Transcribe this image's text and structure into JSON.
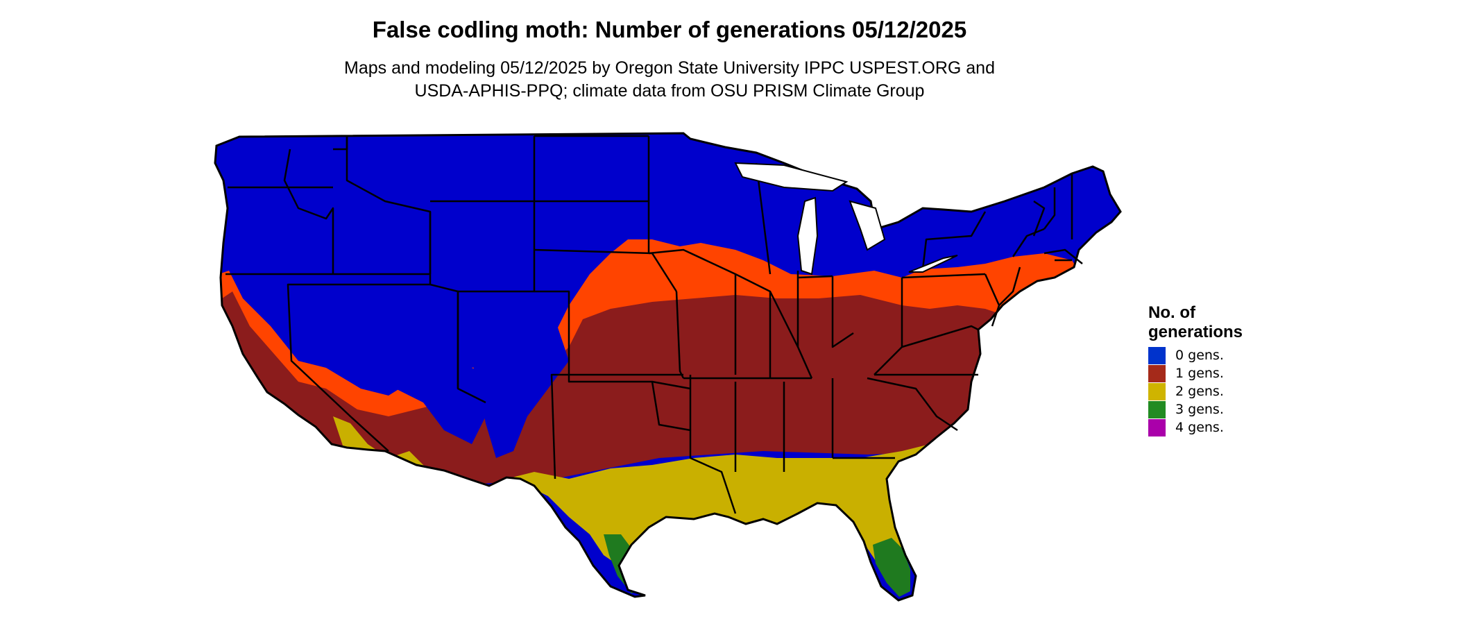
{
  "title": "False codling moth: Number of generations 05/12/2025",
  "subtitle_line1": "Maps and modeling 05/12/2025 by Oregon State University IPPC USPEST.ORG and",
  "subtitle_line2": "USDA-APHIS-PPQ; climate data from OSU PRISM Climate Group",
  "legend": {
    "title_line1": "No. of",
    "title_line2": "generations",
    "items": [
      {
        "label": "0 gens.",
        "color": "#0033cc"
      },
      {
        "label": "1 gens.",
        "color": "#a52a1a"
      },
      {
        "label": "2 gens.",
        "color": "#cfb400"
      },
      {
        "label": "3 gens.",
        "color": "#228b22"
      },
      {
        "label": "4 gens.",
        "color": "#aa00aa"
      }
    ]
  },
  "map_colors": {
    "zero": "#0000cc",
    "transition": "#ff4400",
    "one": "#8b1c1c",
    "two": "#c9b000",
    "three": "#1f7a1f",
    "four": "#b300b3",
    "state_lines": "#000000"
  }
}
